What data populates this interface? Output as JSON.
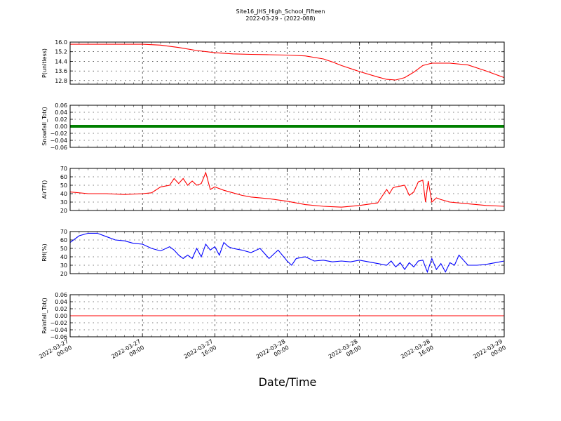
{
  "figure": {
    "title": "Site16_JHS_High_School_Fifteen",
    "subtitle": "2022-03-29 - (2022-088)",
    "xlabel": "Date/Time"
  },
  "colors": {
    "red": "#ff0000",
    "green": "#008000",
    "blue": "#0000ff",
    "axis": "#000000"
  },
  "chart_data": [
    {
      "type": "line",
      "ylabel": "P(unitless)",
      "ylim": [
        12.5,
        16.0
      ],
      "yticks": [
        "16.0",
        "15.2",
        "14.4",
        "13.6",
        "12.8"
      ],
      "grid": true,
      "series": [
        {
          "color": "#ff0000",
          "x": [
            0,
            4,
            8,
            10,
            12,
            14,
            16,
            18,
            20,
            22,
            24,
            26,
            28,
            29,
            30,
            32,
            34,
            35,
            36,
            37,
            38,
            39,
            40,
            42,
            44,
            46,
            48
          ],
          "y": [
            15.82,
            15.82,
            15.82,
            15.75,
            15.55,
            15.3,
            15.12,
            15.02,
            14.98,
            14.95,
            14.92,
            14.85,
            14.6,
            14.35,
            14.05,
            13.55,
            13.1,
            12.9,
            12.85,
            13.05,
            13.5,
            14.05,
            14.25,
            14.25,
            14.1,
            13.6,
            13.05
          ]
        }
      ]
    },
    {
      "type": "line",
      "ylabel": "Snowfall_Tot()",
      "ylim": [
        -0.06,
        0.06
      ],
      "yticks": [
        "0.06",
        "0.04",
        "0.02",
        "0.00",
        "−0.02",
        "−0.04",
        "−0.06"
      ],
      "grid": true,
      "series": [
        {
          "color": "#008000",
          "x": [
            0,
            48
          ],
          "y": [
            0,
            0
          ]
        }
      ]
    },
    {
      "type": "line",
      "ylabel": "AirTF()",
      "ylim": [
        20,
        70
      ],
      "yticks": [
        "70",
        "60",
        "50",
        "40",
        "30",
        "20"
      ],
      "grid": true,
      "series": [
        {
          "color": "#ff0000",
          "x": [
            0,
            2,
            4,
            6,
            8,
            9,
            10,
            11,
            11.5,
            12,
            12.5,
            13,
            13.5,
            14,
            14.5,
            15,
            15.5,
            16,
            17,
            18,
            19,
            20,
            22,
            24,
            26,
            28,
            30,
            32,
            34,
            35,
            35.3,
            35.7,
            36,
            37,
            37.5,
            38,
            38.5,
            39,
            39.3,
            39.6,
            40,
            40.5,
            41,
            42,
            44,
            46,
            48
          ],
          "y": [
            42,
            40,
            40,
            39,
            40,
            41,
            48,
            50,
            58,
            52,
            58,
            50,
            55,
            50,
            52,
            65,
            45,
            48,
            44,
            41,
            38,
            36,
            34,
            31,
            27,
            25,
            24,
            26,
            29,
            45,
            40,
            47,
            48,
            50,
            38,
            42,
            54,
            56,
            30,
            55,
            30,
            35,
            33,
            30,
            28,
            26,
            25
          ]
        }
      ]
    },
    {
      "type": "line",
      "ylabel": "RH(%)",
      "ylim": [
        20,
        70
      ],
      "yticks": [
        "70",
        "60",
        "50",
        "40",
        "30",
        "20"
      ],
      "grid": true,
      "series": [
        {
          "color": "#0000ff",
          "x": [
            0,
            1,
            2,
            3,
            4,
            5,
            6,
            7,
            8,
            9,
            10,
            11,
            11.5,
            12,
            12.5,
            13,
            13.5,
            14,
            14.5,
            15,
            15.5,
            16,
            16.5,
            17,
            17.5,
            18,
            19,
            20,
            21,
            22,
            23,
            24,
            24.5,
            25,
            26,
            27,
            28,
            29,
            30,
            31,
            32,
            33,
            34,
            35,
            35.5,
            36,
            36.5,
            37,
            37.5,
            38,
            38.5,
            39,
            39.5,
            40,
            40.5,
            41,
            41.5,
            42,
            42.5,
            43,
            44,
            45,
            46,
            47,
            48
          ],
          "y": [
            57,
            65,
            68,
            68,
            64,
            60,
            59,
            56,
            55,
            50,
            47,
            52,
            48,
            42,
            38,
            42,
            38,
            50,
            40,
            55,
            48,
            52,
            42,
            57,
            52,
            50,
            48,
            45,
            50,
            38,
            48,
            35,
            30,
            38,
            40,
            35,
            36,
            34,
            35,
            34,
            36,
            34,
            32,
            30,
            35,
            28,
            33,
            25,
            33,
            28,
            35,
            36,
            22,
            38,
            25,
            32,
            22,
            33,
            30,
            42,
            30,
            30,
            31,
            33,
            35
          ]
        }
      ]
    },
    {
      "type": "line",
      "ylabel": "Rainfall_Tot()",
      "ylim": [
        -0.06,
        0.06
      ],
      "yticks": [
        "0.06",
        "0.04",
        "0.02",
        "0.00",
        "−0.02",
        "−0.04",
        "−0.06"
      ],
      "grid": true,
      "series": [
        {
          "color": "#ff0000",
          "x": [
            0,
            48
          ],
          "y": [
            0,
            0
          ]
        }
      ]
    }
  ],
  "xaxis": {
    "range_hours": [
      0,
      48
    ],
    "ticks": [
      {
        "hours": 0,
        "line1": "2022-03-27",
        "line2": "00:00"
      },
      {
        "hours": 8,
        "line1": "2022-03-27",
        "line2": "08:00"
      },
      {
        "hours": 16,
        "line1": "2022-03-27",
        "line2": "16:00"
      },
      {
        "hours": 24,
        "line1": "2022-03-28",
        "line2": "00:00"
      },
      {
        "hours": 32,
        "line1": "2022-03-28",
        "line2": "08:00"
      },
      {
        "hours": 40,
        "line1": "2022-03-28",
        "line2": "16:00"
      },
      {
        "hours": 48,
        "line1": "2022-03-29",
        "line2": "00:00"
      }
    ]
  }
}
